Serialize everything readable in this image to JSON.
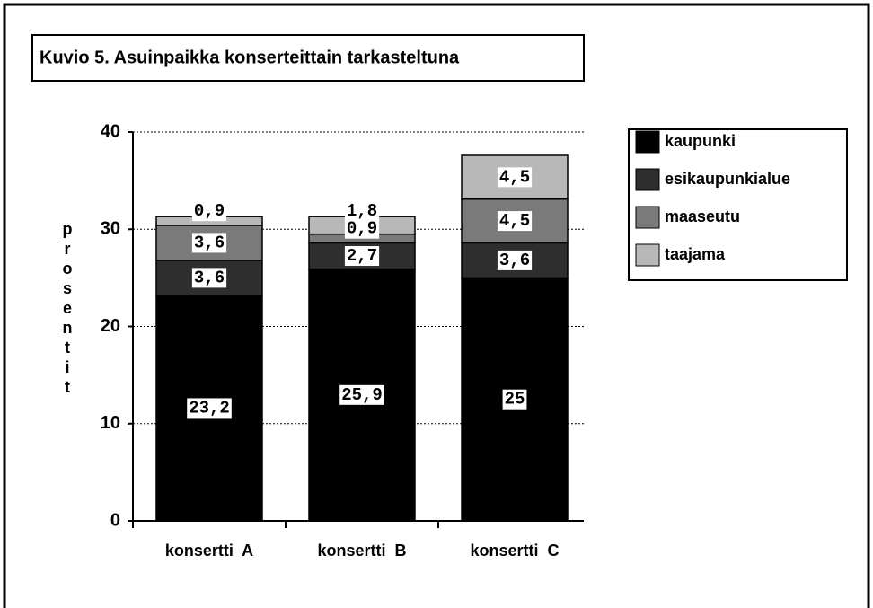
{
  "chart_data": {
    "type": "stacked_bar",
    "title": "Kuvio 5. Asuinpaikka konserteittain tarkasteltuna",
    "y_label": "prosentit",
    "categories": [
      "konsertti  A",
      "konsertti  B",
      "konsertti  C"
    ],
    "series": [
      {
        "name": "kaupunki",
        "color": "#000000",
        "values": [
          23.2,
          25.9,
          25
        ],
        "value_labels": [
          "23,2",
          "25,9",
          "25"
        ]
      },
      {
        "name": "esikaupunkialue",
        "color": "#2e2e2e",
        "values": [
          3.6,
          2.7,
          3.6
        ],
        "value_labels": [
          "3,6",
          "2,7",
          "3,6"
        ]
      },
      {
        "name": "maaseutu",
        "color": "#7a7a7a",
        "values": [
          3.6,
          0.9,
          4.5
        ],
        "value_labels": [
          "3,6",
          "0,9",
          "4,5"
        ]
      },
      {
        "name": "taajama",
        "color": "#b8b8b8",
        "values": [
          0.9,
          1.8,
          4.5
        ],
        "value_labels": [
          "0,9",
          "1,8",
          "4,5"
        ]
      }
    ],
    "ylim": [
      0,
      40
    ],
    "yticks": [
      0,
      10,
      20,
      30,
      40
    ],
    "grid": true,
    "legend": "right"
  }
}
